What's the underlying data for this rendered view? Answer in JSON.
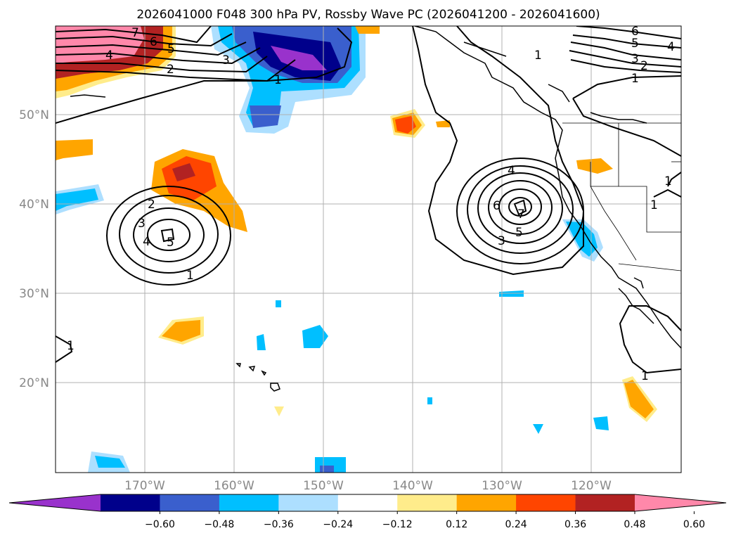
{
  "title": "2026041000 F048 300 hPa PV, Rossby Wave PC (2026041200 - 2026041600)",
  "map": {
    "lat_labels": [
      "50°N",
      "40°N",
      "30°N",
      "20°N"
    ],
    "lon_labels": [
      "170°W",
      "160°W",
      "150°W",
      "140°W",
      "130°W",
      "120°W"
    ],
    "grid": true
  },
  "colorbar": {
    "ticks": [
      "−0.60",
      "−0.48",
      "−0.36",
      "−0.24",
      "−0.12",
      "0.12",
      "0.24",
      "0.36",
      "0.48",
      "0.60"
    ],
    "colors": [
      "#9932CC",
      "#00008B",
      "#3A5FCD",
      "#00BFFF",
      "#ADDFFF",
      "#FFFFFF",
      "#FFEC8B",
      "#FFA500",
      "#FF4500",
      "#B22222",
      "#FF88AA"
    ],
    "extend": "both"
  },
  "contour_labels": {
    "west_low": [
      "2",
      "3",
      "4",
      "5",
      "1"
    ],
    "east_low": [
      "4",
      "6",
      "7",
      "5",
      "3"
    ],
    "northwest": [
      "7",
      "6",
      "5",
      "4",
      "3",
      "2",
      "1"
    ],
    "northeast": [
      "6",
      "5",
      "4",
      "3",
      "2",
      "1",
      "1"
    ],
    "misc": [
      "1",
      "1",
      "1",
      "1"
    ]
  }
}
